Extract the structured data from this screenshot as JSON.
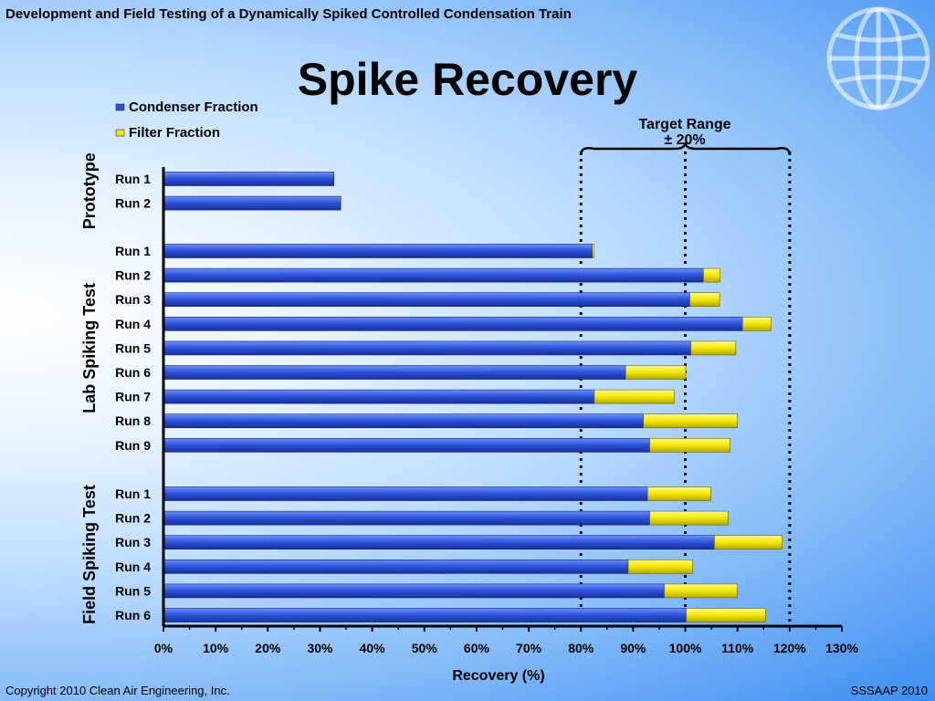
{
  "header": {
    "title": "Development and Field Testing of a Dynamically Spiked Controlled Condensation Train"
  },
  "slide": {
    "title": "Spike Recovery"
  },
  "footer": {
    "copyright": "Copyright 2010 Clean Air Engineering, Inc.",
    "event": "SSSAAP 2010"
  },
  "annotation": {
    "line1": "Target Range",
    "line2": "± 20%"
  },
  "colors": {
    "condenser": "#2a52d8",
    "filter": "#f2e600"
  },
  "chart_data": {
    "type": "bar",
    "orientation": "horizontal",
    "stacked": true,
    "xlabel": "Recovery (%)",
    "xlim": [
      0,
      130
    ],
    "xticks": [
      "0%",
      "10%",
      "20%",
      "30%",
      "40%",
      "50%",
      "60%",
      "70%",
      "80%",
      "90%",
      "100%",
      "110%",
      "120%",
      "130%"
    ],
    "reference_lines": [
      80,
      100,
      120
    ],
    "legend": [
      {
        "name": "Condenser Fraction",
        "color": "#2a52d8"
      },
      {
        "name": "Filter Fraction",
        "color": "#f2e600"
      }
    ],
    "groups": [
      {
        "name": "Prototype",
        "runs": [
          {
            "label": "Run 1",
            "condenser": 32.5,
            "filter": 0
          },
          {
            "label": "Run 2",
            "condenser": 33.8,
            "filter": 0
          }
        ]
      },
      {
        "name": "Lab Spiking Test",
        "runs": [
          {
            "label": "Run 1",
            "condenser": 82.0,
            "filter": 0.3
          },
          {
            "label": "Run 2",
            "condenser": 103.3,
            "filter": 3.2
          },
          {
            "label": "Run 3",
            "condenser": 100.7,
            "filter": 5.7
          },
          {
            "label": "Run 4",
            "condenser": 110.8,
            "filter": 5.5
          },
          {
            "label": "Run 5",
            "condenser": 100.9,
            "filter": 8.6
          },
          {
            "label": "Run 6",
            "condenser": 88.4,
            "filter": 11.5
          },
          {
            "label": "Run 7",
            "condenser": 82.4,
            "filter": 15.3
          },
          {
            "label": "Run 8",
            "condenser": 91.8,
            "filter": 18.0
          },
          {
            "label": "Run 9",
            "condenser": 93.0,
            "filter": 15.4
          }
        ]
      },
      {
        "name": "Field Spiking Test",
        "runs": [
          {
            "label": "Run 1",
            "condenser": 92.6,
            "filter": 12.1
          },
          {
            "label": "Run 2",
            "condenser": 93.0,
            "filter": 15.0
          },
          {
            "label": "Run 3",
            "condenser": 105.4,
            "filter": 13.0
          },
          {
            "label": "Run 4",
            "condenser": 88.9,
            "filter": 12.3
          },
          {
            "label": "Run 5",
            "condenser": 95.8,
            "filter": 14.0
          },
          {
            "label": "Run 6",
            "condenser": 100.0,
            "filter": 15.2
          }
        ]
      }
    ]
  }
}
